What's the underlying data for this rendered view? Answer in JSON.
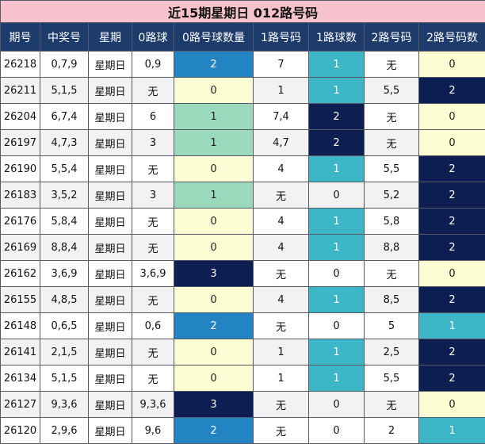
{
  "title": "近15期星期日 012路号码",
  "headers": [
    "期号",
    "中奖号",
    "星期",
    "0路球",
    "0路号球数量",
    "1路号码",
    "1路球数",
    "2路号码",
    "2路号码数"
  ],
  "rows": [
    [
      "26218",
      "0,7,9",
      "星期日",
      "0,9",
      "2",
      "7",
      "1",
      "无",
      "0"
    ],
    [
      "26211",
      "5,1,5",
      "星期日",
      "无",
      "0",
      "1",
      "1",
      "5,5",
      "2"
    ],
    [
      "26204",
      "6,7,4",
      "星期日",
      "6",
      "1",
      "7,4",
      "2",
      "无",
      "0"
    ],
    [
      "26197",
      "4,7,3",
      "星期日",
      "3",
      "1",
      "4,7",
      "2",
      "无",
      "0"
    ],
    [
      "26190",
      "5,5,4",
      "星期日",
      "无",
      "0",
      "4",
      "1",
      "5,5",
      "2"
    ],
    [
      "26183",
      "3,5,2",
      "星期日",
      "3",
      "1",
      "无",
      "0",
      "5,2",
      "2"
    ],
    [
      "26176",
      "5,8,4",
      "星期日",
      "无",
      "0",
      "4",
      "1",
      "5,8",
      "2"
    ],
    [
      "26169",
      "8,8,4",
      "星期日",
      "无",
      "0",
      "4",
      "1",
      "8,8",
      "2"
    ],
    [
      "26162",
      "3,6,9",
      "星期日",
      "3,6,9",
      "3",
      "无",
      "0",
      "无",
      "0"
    ],
    [
      "26155",
      "4,8,5",
      "星期日",
      "无",
      "0",
      "4",
      "1",
      "8,5",
      "2"
    ],
    [
      "26148",
      "0,6,5",
      "星期日",
      "0,6",
      "2",
      "无",
      "0",
      "5",
      "1"
    ],
    [
      "26141",
      "2,1,5",
      "星期日",
      "无",
      "0",
      "1",
      "1",
      "2,5",
      "2"
    ],
    [
      "26134",
      "5,1,5",
      "星期日",
      "无",
      "0",
      "1",
      "1",
      "5,5",
      "2"
    ],
    [
      "26127",
      "9,3,6",
      "星期日",
      "9,3,6",
      "3",
      "无",
      "0",
      "无",
      "0"
    ],
    [
      "26120",
      "2,9,6",
      "星期日",
      "9,6",
      "2",
      "无",
      "0",
      "2",
      "1"
    ]
  ],
  "colors": {
    "title_bg": "#f5c2cd",
    "header_bg": "#1d3b6b",
    "count_light": "#fefed4",
    "count_mint": "#9bd9bd",
    "count_teal": "#3db6c7",
    "count_blue": "#2284c2",
    "count_navy": "#0d1f52"
  }
}
